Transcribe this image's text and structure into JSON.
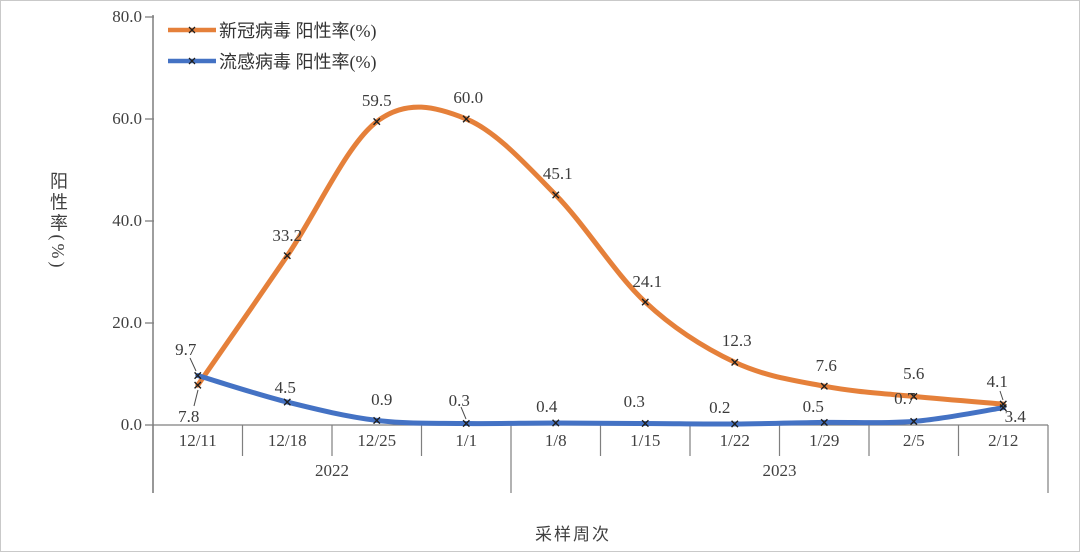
{
  "chart_data": {
    "type": "line",
    "title": "",
    "xlabel": "采样周次",
    "ylabel": "阳性率(%)",
    "ylim": [
      0,
      80
    ],
    "yticks": [
      "80.0",
      "60.0",
      "40.0",
      "20.0",
      "0.0"
    ],
    "ytick_values": [
      80,
      60,
      40,
      20,
      0
    ],
    "categories": [
      "12/11",
      "12/18",
      "12/25",
      "1/1",
      "1/8",
      "1/15",
      "1/22",
      "1/29",
      "2/5",
      "2/12"
    ],
    "year_groups": [
      {
        "label": "2022",
        "from": 0,
        "to": 3
      },
      {
        "label": "2023",
        "from": 4,
        "to": 9
      }
    ],
    "grid": false,
    "smooth": true,
    "legend_position": "top-left",
    "marker": "x",
    "marker_color": "#1f1f1f",
    "axis_color": "#7f7f7f",
    "series": [
      {
        "name": "新冠病毒 阳性率(%)",
        "color": "#E5803A",
        "values": [
          7.8,
          33.2,
          59.5,
          60.0,
          45.1,
          24.1,
          12.3,
          7.6,
          5.6,
          4.1
        ],
        "labels": [
          "7.8",
          "33.2",
          "59.5",
          "60.0",
          "45.1",
          "24.1",
          "12.3",
          "7.6",
          "5.6",
          "4.1"
        ]
      },
      {
        "name": "流感病毒 阳性率(%)",
        "color": "#4472C4",
        "values": [
          9.7,
          4.5,
          0.9,
          0.3,
          0.4,
          0.3,
          0.2,
          0.5,
          0.7,
          3.4
        ],
        "labels": [
          "9.7",
          "4.5",
          "0.9",
          "0.3",
          "0.4",
          "0.3",
          "0.2",
          "0.5",
          "0.7",
          "3.4"
        ]
      }
    ]
  }
}
